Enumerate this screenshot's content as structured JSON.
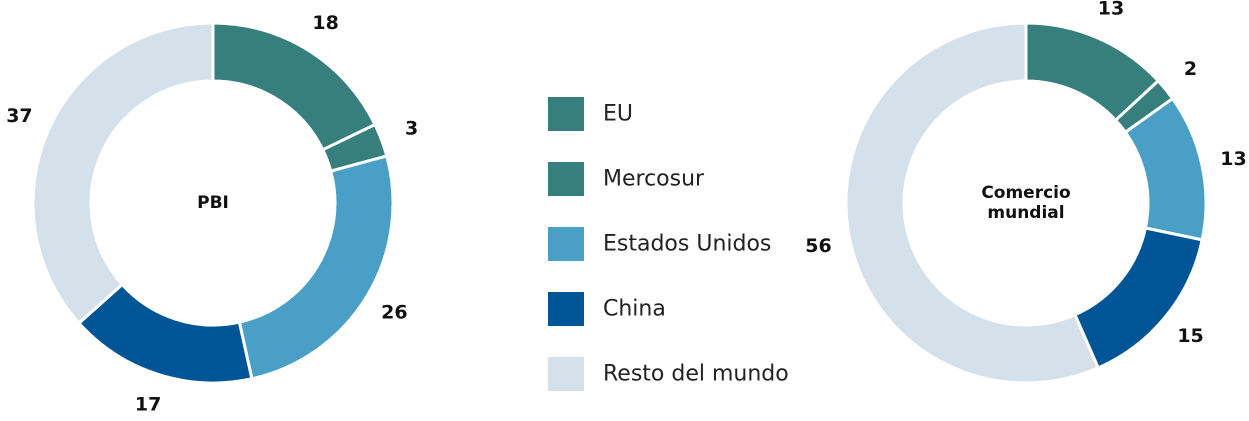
{
  "chart_data": [
    {
      "type": "donut",
      "title": "PBI",
      "categories": [
        "EU",
        "Mercosur",
        "Estados Unidos",
        "China",
        "Resto del mundo"
      ],
      "values": [
        18,
        3,
        26,
        17,
        37
      ],
      "colors": [
        "#367f7c",
        "#367f7c",
        "#4a9fc6",
        "#005596",
        "#d4e1ea"
      ]
    },
    {
      "type": "donut",
      "title": "Comercio mundial",
      "categories": [
        "EU",
        "Mercosur",
        "Estados Unidos",
        "China",
        "Resto del mundo"
      ],
      "values": [
        13,
        2,
        13,
        15,
        56
      ],
      "colors": [
        "#367f7c",
        "#367f7c",
        "#4a9fc6",
        "#005596",
        "#d4e1ea"
      ]
    }
  ]
}
